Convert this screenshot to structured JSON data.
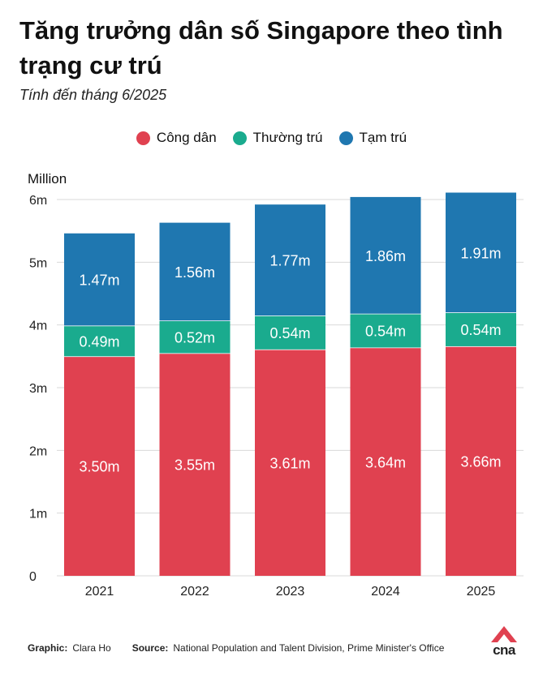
{
  "title": "Tăng trưởng dân số Singapore theo tình trạng cư trú",
  "subtitle": "Tính đến tháng 6/2025",
  "legend": [
    {
      "label": "Công dân",
      "color": "#e04150"
    },
    {
      "label": "Thường trú",
      "color": "#1aab8e"
    },
    {
      "label": "Tạm trú",
      "color": "#1f77b0"
    }
  ],
  "chart_data": {
    "type": "bar",
    "stacked": true,
    "ylabel": "Million",
    "ylim": [
      0,
      6
    ],
    "yticks": [
      "0",
      "1m",
      "2m",
      "3m",
      "4m",
      "5m",
      "6m"
    ],
    "categories": [
      "2021",
      "2022",
      "2023",
      "2024",
      "2025"
    ],
    "series": [
      {
        "name": "Công dân",
        "color": "#e04150",
        "values": [
          3.5,
          3.55,
          3.61,
          3.64,
          3.66
        ],
        "labels": [
          "3.50m",
          "3.55m",
          "3.61m",
          "3.64m",
          "3.66m"
        ]
      },
      {
        "name": "Thường trú",
        "color": "#1aab8e",
        "values": [
          0.49,
          0.52,
          0.54,
          0.54,
          0.54
        ],
        "labels": [
          "0.49m",
          "0.52m",
          "0.54m",
          "0.54m",
          "0.54m"
        ]
      },
      {
        "name": "Tạm trú",
        "color": "#1f77b0",
        "values": [
          1.47,
          1.56,
          1.77,
          1.86,
          1.91
        ],
        "labels": [
          "1.47m",
          "1.56m",
          "1.77m",
          "1.86m",
          "1.91m"
        ]
      }
    ]
  },
  "footer": {
    "graphic_label": "Graphic:",
    "graphic_value": "Clara Ho",
    "source_label": "Source:",
    "source_value": "National Population and Talent Division, Prime Minister's Office"
  },
  "logo": {
    "text": "cna",
    "color": "#e04150"
  }
}
